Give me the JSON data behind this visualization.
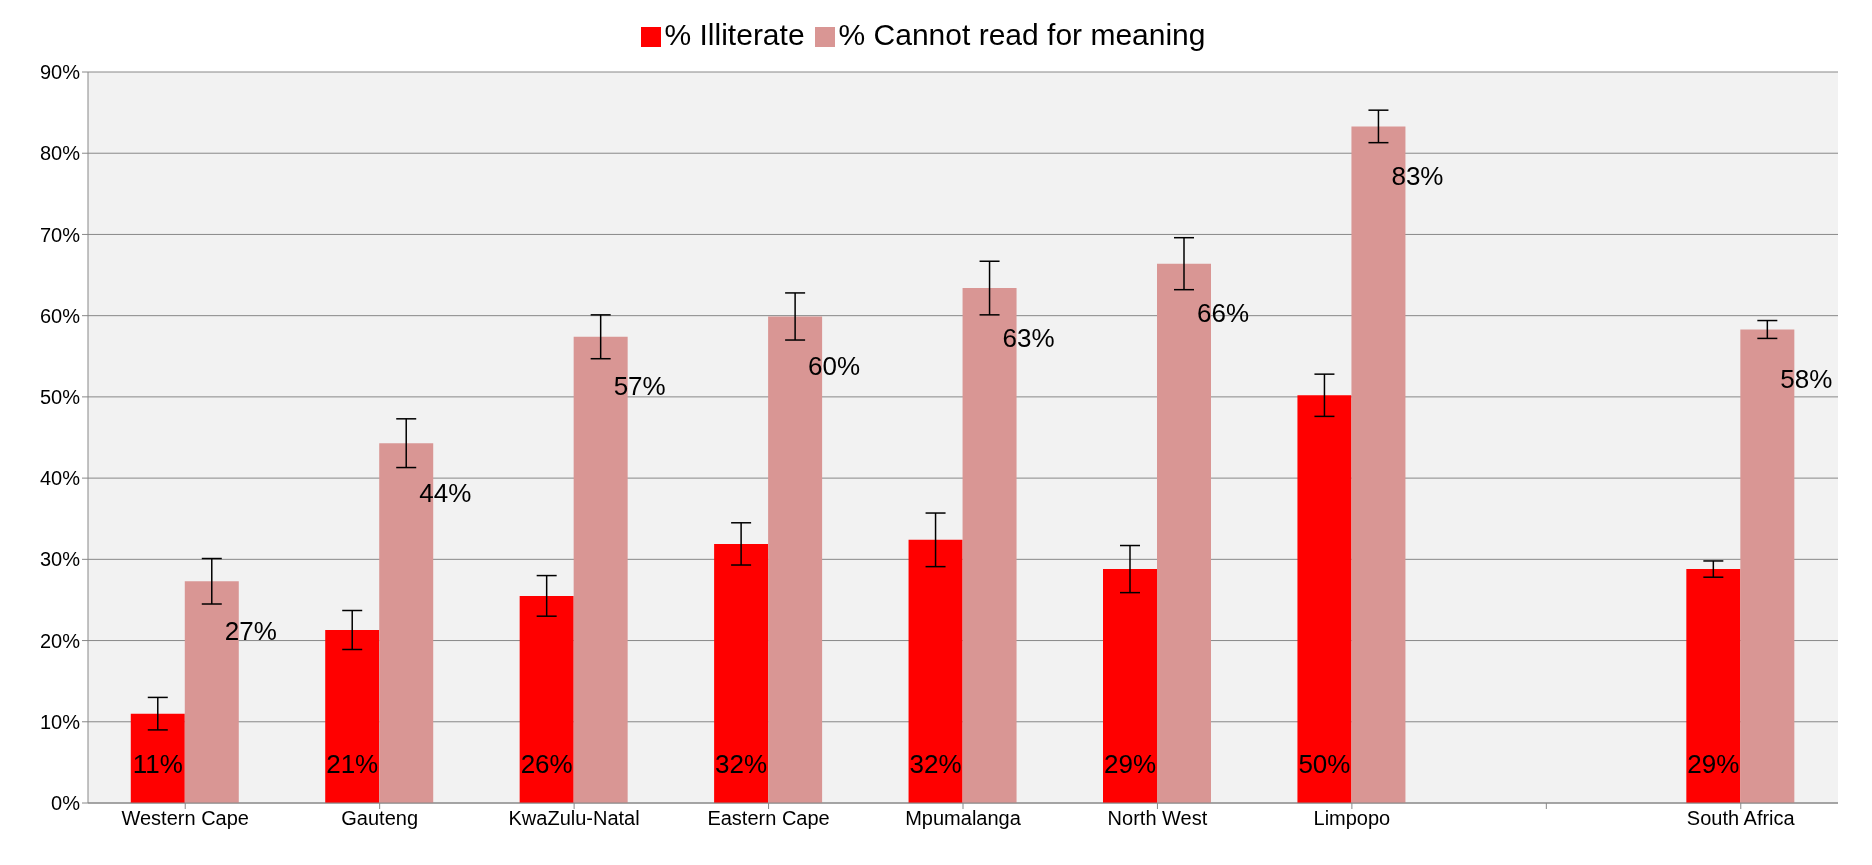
{
  "chart_data": {
    "type": "bar",
    "categories": [
      "Western Cape",
      "Gauteng",
      "KwaZulu-Natal",
      "Eastern Cape",
      "Mpumalanga",
      "North West",
      "Limpopo",
      null,
      "South Africa"
    ],
    "series": [
      {
        "name": "% Illiterate",
        "color": "#ff0000",
        "values": [
          11.0,
          21.3,
          25.5,
          31.9,
          32.4,
          28.8,
          50.2,
          null,
          28.8
        ],
        "errors": [
          2,
          2.4,
          2.5,
          2.6,
          3.3,
          2.9,
          2.6,
          null,
          1
        ],
        "value_labels": [
          "11%",
          "21%",
          "26%",
          "32%",
          "32%",
          "29%",
          "50%",
          null,
          "29%"
        ]
      },
      {
        "name": "% Cannot read for meaning",
        "color": "#d99694",
        "values": [
          27.3,
          44.3,
          57.4,
          59.9,
          63.4,
          66.4,
          83.3,
          null,
          58.3
        ],
        "errors": [
          2.8,
          3,
          2.7,
          2.9,
          3.3,
          3.2,
          2,
          null,
          1.1
        ],
        "value_labels": [
          "27%",
          "44%",
          "57%",
          "60%",
          "63%",
          "66%",
          "83%",
          null,
          "58%"
        ]
      }
    ],
    "ylim": [
      0,
      90
    ],
    "yticks": [
      {
        "value": 0,
        "label": "0%"
      },
      {
        "value": 10,
        "label": "10%"
      },
      {
        "value": 20,
        "label": "20%"
      },
      {
        "value": 30,
        "label": "30%"
      },
      {
        "value": 40,
        "label": "40%"
      },
      {
        "value": 50,
        "label": "50%"
      },
      {
        "value": 60,
        "label": "60%"
      },
      {
        "value": 70,
        "label": "70%"
      },
      {
        "value": 80,
        "label": "80%"
      },
      {
        "value": 90,
        "label": "90%"
      }
    ],
    "grid": "y",
    "legend": "top"
  }
}
